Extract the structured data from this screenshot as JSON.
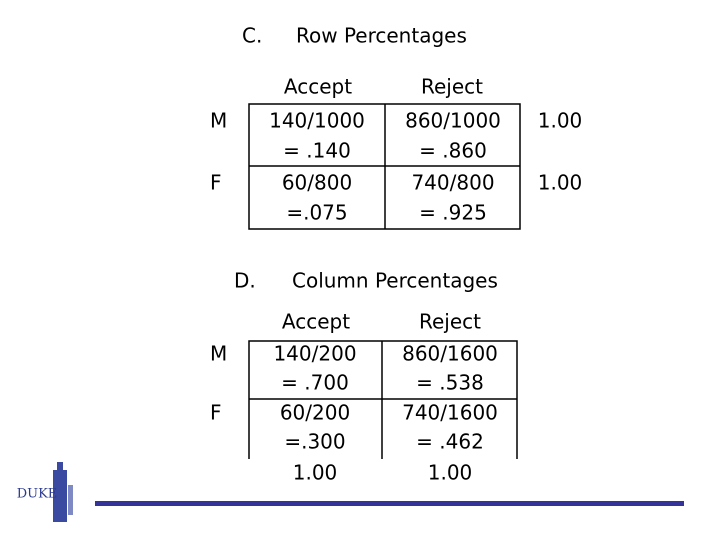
{
  "sections": [
    {
      "label": "C.",
      "title": "Row Percentages",
      "columns": [
        "Accept",
        "Reject"
      ],
      "rows": [
        {
          "label": "M",
          "cells": [
            [
              "140/1000",
              "= .140"
            ],
            [
              "860/1000",
              "= .860"
            ]
          ],
          "total": "1.00"
        },
        {
          "label": "F",
          "cells": [
            [
              "60/800",
              "=.075"
            ],
            [
              "740/800",
              "= .925"
            ]
          ],
          "total": "1.00"
        }
      ]
    },
    {
      "label": "D.",
      "title": "Column Percentages",
      "columns": [
        "Accept",
        "Reject"
      ],
      "rows": [
        {
          "label": "M",
          "cells": [
            [
              "140/200",
              "= .700"
            ],
            [
              "860/1600",
              "= .538"
            ]
          ]
        },
        {
          "label": "F",
          "cells": [
            [
              "60/200",
              "=.300"
            ],
            [
              "740/1600",
              "= .462"
            ]
          ]
        }
      ],
      "totals": [
        "1.00",
        "1.00"
      ]
    }
  ],
  "logo": "DUKE"
}
